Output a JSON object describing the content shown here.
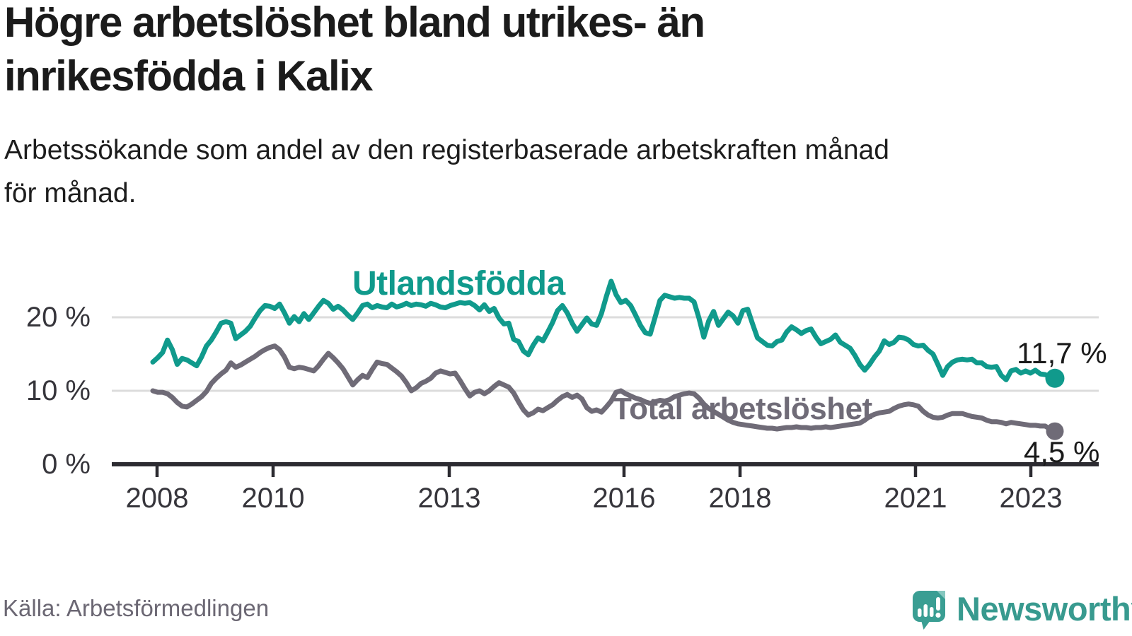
{
  "header": {
    "title_lines": "Högre arbetslöshet bland utrikes- än\ninrikesfödda i Kalix",
    "subtitle_lines": "Arbetssökande som andel av den registerbaserade arbetskraften månad\nför månad."
  },
  "footer": {
    "source": "Källa: Arbetsförmedlingen",
    "brand": "Newsworthy"
  },
  "colors": {
    "accent_teal": "#109a8c",
    "series_total_gray": "#6f6b77",
    "axis_dark": "#2c2b31",
    "grid_light": "#dcdcdc",
    "brand_teal": "#3a9e93"
  },
  "chart_data": {
    "type": "line",
    "title": "Högre arbetslöshet bland utrikes- än inrikesfödda i Kalix",
    "subtitle": "Arbetssökande som andel av den registerbaserade arbetskraften månad för månad.",
    "x_unit": "month",
    "x_start": "2008-01",
    "x_end": "2023-06",
    "x_tick_labels": [
      "2008",
      "2010",
      "2013",
      "2016",
      "2018",
      "2021",
      "2023"
    ],
    "y_tick_labels": [
      "20 %",
      "10 %",
      "0 %"
    ],
    "ylim": [
      0,
      26
    ],
    "grid": "horizontal",
    "legend_position": "inline-labels",
    "series": [
      {
        "name": "Utlandsfödda",
        "color": "#109a8c",
        "end_value": 11.7,
        "end_label": "11,7 %",
        "values": [
          13.9,
          14.5,
          15.2,
          16.9,
          15.6,
          13.6,
          14.4,
          14.2,
          13.8,
          13.4,
          14.6,
          16.1,
          16.9,
          18.0,
          19.2,
          19.4,
          19.2,
          17.1,
          17.6,
          18.1,
          18.8,
          19.9,
          20.9,
          21.6,
          21.5,
          21.2,
          21.8,
          20.6,
          19.2,
          20.1,
          19.4,
          20.5,
          19.7,
          20.6,
          21.5,
          22.3,
          21.9,
          21.1,
          21.5,
          21.0,
          20.3,
          19.7,
          20.6,
          21.6,
          21.8,
          21.3,
          21.6,
          21.4,
          21.3,
          21.8,
          21.4,
          21.6,
          21.9,
          21.6,
          21.8,
          21.7,
          21.5,
          21.9,
          21.7,
          21.4,
          21.3,
          21.6,
          21.8,
          22.0,
          21.9,
          22.0,
          21.6,
          21.0,
          21.7,
          20.8,
          21.2,
          19.9,
          19.1,
          19.2,
          17.0,
          16.7,
          15.4,
          14.9,
          16.2,
          17.2,
          16.8,
          18.0,
          19.3,
          20.9,
          21.6,
          20.6,
          19.2,
          18.1,
          19.0,
          19.9,
          19.1,
          18.9,
          20.5,
          22.8,
          24.9,
          23.1,
          22.0,
          22.3,
          21.6,
          20.3,
          18.9,
          17.9,
          17.7,
          20.0,
          22.3,
          23.0,
          22.8,
          22.6,
          22.7,
          22.6,
          22.6,
          22.1,
          19.9,
          17.3,
          19.5,
          20.8,
          18.9,
          19.8,
          20.7,
          20.2,
          19.2,
          20.9,
          21.1,
          19.1,
          17.2,
          16.7,
          16.2,
          16.1,
          16.7,
          16.9,
          18.0,
          18.7,
          18.3,
          17.8,
          18.2,
          18.4,
          17.3,
          16.4,
          16.7,
          17.0,
          17.6,
          16.6,
          16.2,
          15.8,
          14.8,
          13.6,
          12.8,
          13.6,
          14.6,
          15.4,
          16.8,
          16.3,
          16.6,
          17.3,
          17.2,
          16.9,
          16.3,
          16.1,
          16.2,
          15.5,
          15.0,
          13.6,
          12.1,
          13.3,
          13.9,
          14.2,
          14.3,
          14.2,
          14.3,
          13.8,
          13.8,
          13.3,
          13.2,
          13.3,
          12.1,
          11.5,
          12.7,
          12.9,
          12.4,
          12.7,
          12.4,
          12.8,
          12.3,
          12.2,
          11.9,
          11.7
        ]
      },
      {
        "name": "Total arbetslöshet",
        "color": "#6f6b77",
        "end_value": 4.5,
        "end_label": "4,5 %",
        "values": [
          10.0,
          9.8,
          9.8,
          9.6,
          9.1,
          8.4,
          7.9,
          7.8,
          8.2,
          8.7,
          9.2,
          9.9,
          11.0,
          11.7,
          12.3,
          12.8,
          13.8,
          13.2,
          13.5,
          13.9,
          14.3,
          14.7,
          15.2,
          15.6,
          15.9,
          16.1,
          15.6,
          14.6,
          13.2,
          13.0,
          13.2,
          13.1,
          12.9,
          12.7,
          13.4,
          14.3,
          15.1,
          14.5,
          13.8,
          13.0,
          11.9,
          10.8,
          11.5,
          12.1,
          11.8,
          12.9,
          13.9,
          13.7,
          13.6,
          13.1,
          12.6,
          12.0,
          11.1,
          10.0,
          10.4,
          11.0,
          11.3,
          11.7,
          12.4,
          12.7,
          12.5,
          12.3,
          12.4,
          11.4,
          10.3,
          9.3,
          9.8,
          10.0,
          9.6,
          10.0,
          10.6,
          11.1,
          10.8,
          10.5,
          9.7,
          8.5,
          7.4,
          6.7,
          7.0,
          7.5,
          7.3,
          7.7,
          8.1,
          8.7,
          9.2,
          9.5,
          9.1,
          9.4,
          8.9,
          7.7,
          7.2,
          7.4,
          7.1,
          7.8,
          8.6,
          9.8,
          10.0,
          9.6,
          9.3,
          9.0,
          8.8,
          8.5,
          8.3,
          8.5,
          8.7,
          8.6,
          8.8,
          9.2,
          9.4,
          9.6,
          9.7,
          9.6,
          9.0,
          8.2,
          7.6,
          7.2,
          6.8,
          6.4,
          6.0,
          5.7,
          5.5,
          5.4,
          5.3,
          5.2,
          5.1,
          5.0,
          4.9,
          4.9,
          4.8,
          4.9,
          5.0,
          5.0,
          5.1,
          5.0,
          5.0,
          4.9,
          5.0,
          5.0,
          5.1,
          5.0,
          5.1,
          5.2,
          5.3,
          5.4,
          5.5,
          5.6,
          6.0,
          6.5,
          6.8,
          7.0,
          7.1,
          7.2,
          7.6,
          7.9,
          8.1,
          8.2,
          8.1,
          7.9,
          7.2,
          6.7,
          6.4,
          6.3,
          6.4,
          6.7,
          6.9,
          6.9,
          6.9,
          6.7,
          6.5,
          6.4,
          6.3,
          6.0,
          5.8,
          5.8,
          5.7,
          5.5,
          5.7,
          5.6,
          5.5,
          5.4,
          5.3,
          5.3,
          5.2,
          5.2,
          4.8,
          4.5
        ]
      }
    ]
  }
}
